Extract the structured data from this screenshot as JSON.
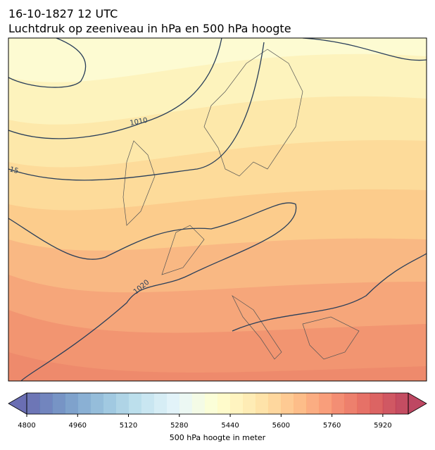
{
  "title": [
    "16-10-1827 12 UTC",
    "Luchtdruk op zeeniveau in hPa en 500 hPa hoogte"
  ],
  "contour_labels": [
    "1010",
    "15",
    "1020"
  ],
  "colorbar": {
    "label": "500 hPa hoogte in meter",
    "range": [
      4800,
      6000
    ],
    "step": 40,
    "ticks": [
      4800,
      4960,
      5120,
      5280,
      5440,
      5600,
      5760,
      5920
    ],
    "colormap": [
      "#313695",
      "#4575b4",
      "#74add1",
      "#abd9e9",
      "#e0f3f8",
      "#ffffbf",
      "#fee090",
      "#fdae61",
      "#f46d43",
      "#d73027",
      "#a50026"
    ]
  }
}
